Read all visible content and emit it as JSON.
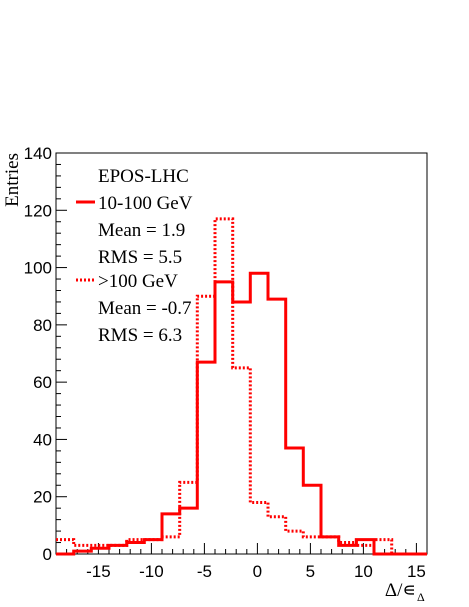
{
  "chart_data": {
    "type": "histogram",
    "title": "EPOS-LHC",
    "xlabel": "Δ/∊",
    "xlabel_subscript": "Δ",
    "ylabel": "Entries",
    "xlim": [
      -19,
      16
    ],
    "ylim": [
      0,
      140
    ],
    "x_ticks": [
      -15,
      -10,
      -5,
      0,
      5,
      10,
      15
    ],
    "y_ticks": [
      0,
      20,
      40,
      60,
      80,
      100,
      120,
      140
    ],
    "bin_edges": [
      -19,
      -17.33,
      -15.67,
      -14,
      -12.33,
      -10.67,
      -9,
      -7.33,
      -5.67,
      -4,
      -2.33,
      -0.67,
      1,
      2.67,
      4.33,
      6,
      7.67,
      9.33,
      11,
      12.67,
      14.33,
      16
    ],
    "series": [
      {
        "name": "10-100 GeV",
        "style": "solid",
        "color": "#ff0000",
        "values": [
          0,
          1,
          2,
          3,
          4,
          5,
          14,
          16,
          67,
          95,
          88,
          98,
          89,
          37,
          24,
          6,
          3,
          5,
          0,
          0,
          0
        ],
        "stats": [
          "Mean = 1.9",
          "RMS = 5.5"
        ]
      },
      {
        "name": ">100 GeV",
        "style": "dotted",
        "color": "#ff0000",
        "values": [
          5,
          3,
          3,
          3,
          5,
          5,
          6,
          25,
          90,
          117,
          65,
          18,
          13,
          8,
          6,
          6,
          4,
          3,
          5,
          0,
          0
        ],
        "stats": [
          "Mean = -0.7",
          "RMS = 6.3"
        ]
      }
    ],
    "legend_position": "top-left",
    "grid": false
  }
}
